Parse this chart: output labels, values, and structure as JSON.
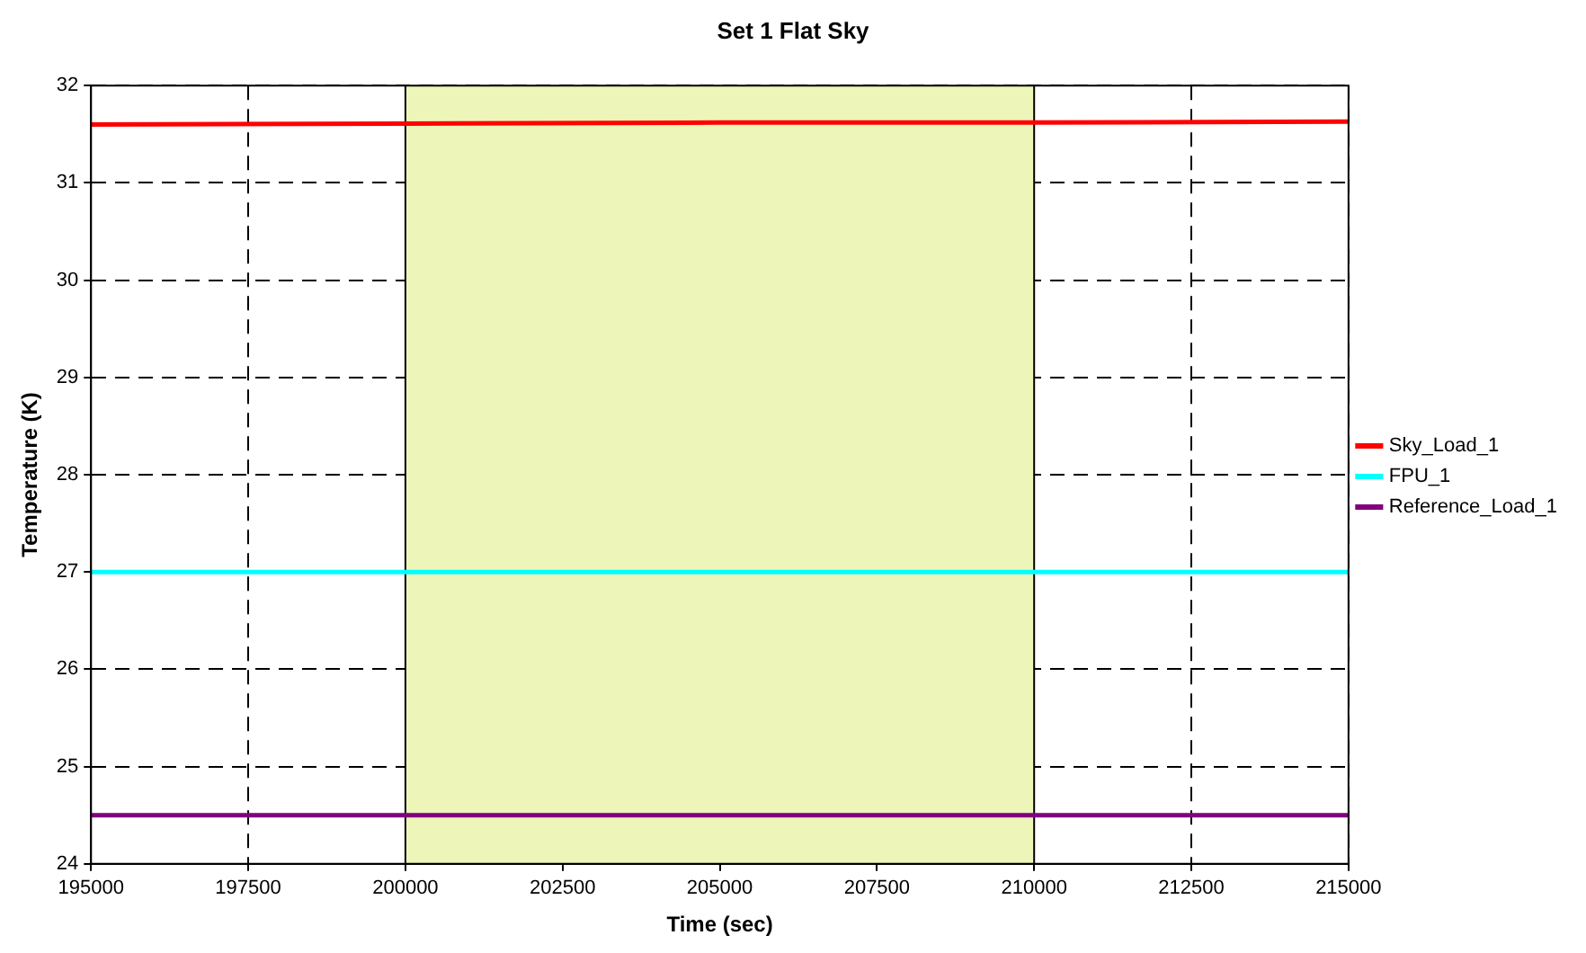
{
  "chart_data": {
    "type": "line",
    "title": "Set 1 Flat Sky",
    "xlabel": "Time (sec)",
    "ylabel": "Temperature (K)",
    "x": [
      195000,
      200000,
      205000,
      210000,
      215000
    ],
    "series": [
      {
        "name": "Sky_Load_1",
        "color": "#ff0000",
        "values": [
          31.6,
          31.61,
          31.62,
          31.62,
          31.63
        ]
      },
      {
        "name": "FPU_1",
        "color": "#00ffff",
        "values": [
          27,
          27,
          27,
          27,
          27
        ]
      },
      {
        "name": "Reference_Load_1",
        "color": "#800080",
        "values": [
          24.5,
          24.5,
          24.5,
          24.5,
          24.5
        ]
      }
    ],
    "xlim": [
      195000,
      215000
    ],
    "xticks": [
      195000,
      197500,
      200000,
      202500,
      205000,
      207500,
      210000,
      212500,
      215000
    ],
    "ylim": [
      24,
      32
    ],
    "yticks": [
      24,
      25,
      26,
      27,
      28,
      29,
      30,
      31,
      32
    ],
    "bands": [
      {
        "axis": "x",
        "from": 200000,
        "to": 210000,
        "color": "#eef5b8"
      }
    ],
    "grid": true,
    "legend": "right",
    "marker": "none",
    "line_style": "solid"
  }
}
